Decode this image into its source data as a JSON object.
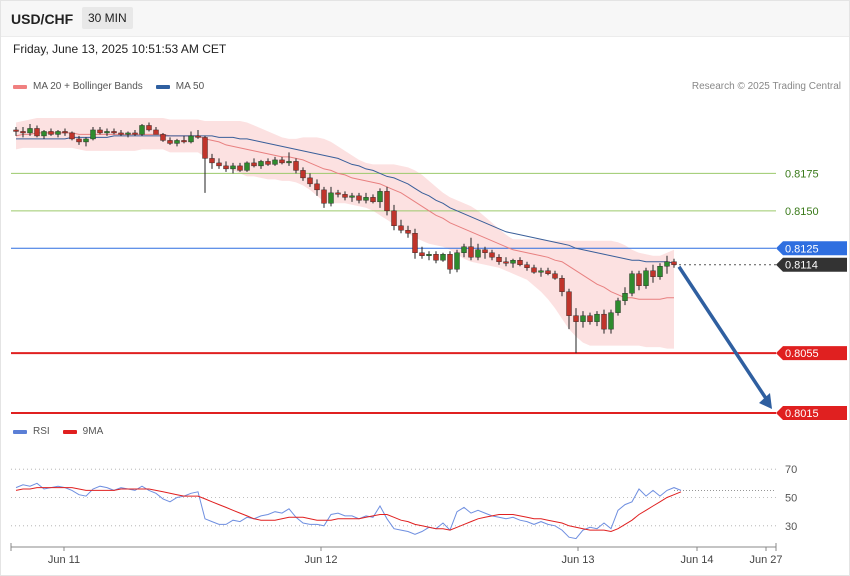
{
  "header": {
    "pair": "USD/CHF",
    "timeframe": "30 MIN"
  },
  "timestamp": "Friday, June 13, 2025 10:51:53 AM CET",
  "legend": [
    {
      "label": "MA 20 + Bollinger Bands",
      "color": "#f08080"
    },
    {
      "label": "MA 50",
      "color": "#2f5fa0"
    }
  ],
  "credit": "Research © 2025 Trading Central",
  "rsi_legend": [
    {
      "label": "RSI",
      "color": "#5b7fd6"
    },
    {
      "label": "9MA",
      "color": "#e02020"
    }
  ],
  "colors": {
    "up": "#2e8b2e",
    "down": "#c0342b",
    "ma20": "#e88080",
    "ma50": "#3a5f9a",
    "band": "#fcdede",
    "target": "#2f5fa0"
  },
  "chart_data": [
    {
      "type": "candlestick",
      "title": "USD/CHF",
      "ylim": [
        0.8005,
        0.823
      ],
      "x_ticks": [
        "Jun 11",
        "Jun 12",
        "Jun 13",
        "Jun 14",
        "Jun 27"
      ],
      "candles": [
        [
          0.8204,
          0.8206,
          0.82,
          0.8203
        ],
        [
          0.8203,
          0.8206,
          0.8199,
          0.8202
        ],
        [
          0.8202,
          0.8208,
          0.82,
          0.8205
        ],
        [
          0.8205,
          0.8207,
          0.8199,
          0.82
        ],
        [
          0.82,
          0.8204,
          0.8198,
          0.8203
        ],
        [
          0.8203,
          0.8205,
          0.82,
          0.8201
        ],
        [
          0.8201,
          0.8204,
          0.8199,
          0.8203
        ],
        [
          0.8203,
          0.8205,
          0.82,
          0.8202
        ],
        [
          0.8202,
          0.8203,
          0.8197,
          0.8198
        ],
        [
          0.8198,
          0.82,
          0.8194,
          0.8196
        ],
        [
          0.8196,
          0.8199,
          0.8193,
          0.8198
        ],
        [
          0.8198,
          0.8206,
          0.8197,
          0.8204
        ],
        [
          0.8204,
          0.8206,
          0.8201,
          0.8202
        ],
        [
          0.8202,
          0.8205,
          0.82,
          0.8203
        ],
        [
          0.8203,
          0.8205,
          0.8201,
          0.8202
        ],
        [
          0.8202,
          0.8204,
          0.82,
          0.8201
        ],
        [
          0.8201,
          0.8203,
          0.8199,
          0.8202
        ],
        [
          0.8202,
          0.8204,
          0.82,
          0.8201
        ],
        [
          0.8201,
          0.8208,
          0.82,
          0.8207
        ],
        [
          0.8207,
          0.8209,
          0.8203,
          0.8204
        ],
        [
          0.8204,
          0.8206,
          0.8201,
          0.8201
        ],
        [
          0.8201,
          0.8202,
          0.8196,
          0.8197
        ],
        [
          0.8197,
          0.8199,
          0.8194,
          0.8195
        ],
        [
          0.8195,
          0.8198,
          0.8193,
          0.8197
        ],
        [
          0.8197,
          0.82,
          0.8195,
          0.8196
        ],
        [
          0.8196,
          0.8203,
          0.8195,
          0.82
        ],
        [
          0.82,
          0.8204,
          0.8198,
          0.8199
        ],
        [
          0.8199,
          0.82,
          0.8162,
          0.8185
        ],
        [
          0.8185,
          0.8188,
          0.8178,
          0.8182
        ],
        [
          0.8182,
          0.8185,
          0.8178,
          0.818
        ],
        [
          0.818,
          0.8183,
          0.8176,
          0.8178
        ],
        [
          0.8178,
          0.8182,
          0.8175,
          0.818
        ],
        [
          0.818,
          0.8182,
          0.8176,
          0.8177
        ],
        [
          0.8177,
          0.8183,
          0.8176,
          0.8182
        ],
        [
          0.8182,
          0.8185,
          0.8179,
          0.818
        ],
        [
          0.818,
          0.8184,
          0.8178,
          0.8183
        ],
        [
          0.8183,
          0.8185,
          0.818,
          0.8181
        ],
        [
          0.8181,
          0.8186,
          0.818,
          0.8184
        ],
        [
          0.8184,
          0.8186,
          0.8181,
          0.8182
        ],
        [
          0.8182,
          0.8189,
          0.818,
          0.8183
        ],
        [
          0.8183,
          0.8185,
          0.8175,
          0.8177
        ],
        [
          0.8177,
          0.8179,
          0.817,
          0.8172
        ],
        [
          0.8172,
          0.8175,
          0.8166,
          0.8168
        ],
        [
          0.8168,
          0.8171,
          0.816,
          0.8164
        ],
        [
          0.8164,
          0.8166,
          0.8152,
          0.8155
        ],
        [
          0.8155,
          0.8166,
          0.8153,
          0.8162
        ],
        [
          0.8162,
          0.8164,
          0.8159,
          0.8161
        ],
        [
          0.8161,
          0.8163,
          0.8157,
          0.8159
        ],
        [
          0.8159,
          0.8162,
          0.8156,
          0.816
        ],
        [
          0.816,
          0.8162,
          0.8155,
          0.8157
        ],
        [
          0.8157,
          0.8162,
          0.8155,
          0.8159
        ],
        [
          0.8159,
          0.8161,
          0.8155,
          0.8156
        ],
        [
          0.8156,
          0.8165,
          0.8152,
          0.8163
        ],
        [
          0.8163,
          0.8166,
          0.8147,
          0.815
        ],
        [
          0.815,
          0.8154,
          0.8137,
          0.814
        ],
        [
          0.814,
          0.8144,
          0.8135,
          0.8137
        ],
        [
          0.8137,
          0.814,
          0.8132,
          0.8135
        ],
        [
          0.8135,
          0.8138,
          0.8118,
          0.8122
        ],
        [
          0.8122,
          0.8126,
          0.8118,
          0.812
        ],
        [
          0.812,
          0.8123,
          0.8117,
          0.8121
        ],
        [
          0.8121,
          0.8123,
          0.8115,
          0.8117
        ],
        [
          0.8117,
          0.8122,
          0.8116,
          0.8121
        ],
        [
          0.8121,
          0.8123,
          0.8108,
          0.8111
        ],
        [
          0.8111,
          0.8124,
          0.8109,
          0.8122
        ],
        [
          0.8122,
          0.8128,
          0.8119,
          0.8126
        ],
        [
          0.8126,
          0.8132,
          0.8117,
          0.8119
        ],
        [
          0.8119,
          0.8128,
          0.8117,
          0.8124
        ],
        [
          0.8124,
          0.8126,
          0.8118,
          0.8122
        ],
        [
          0.8122,
          0.8124,
          0.8117,
          0.8119
        ],
        [
          0.8119,
          0.8121,
          0.8114,
          0.8116
        ],
        [
          0.8116,
          0.8119,
          0.8113,
          0.8115
        ],
        [
          0.8115,
          0.8118,
          0.8112,
          0.8117
        ],
        [
          0.8117,
          0.8119,
          0.8113,
          0.8114
        ],
        [
          0.8114,
          0.8116,
          0.811,
          0.8112
        ],
        [
          0.8112,
          0.8114,
          0.8108,
          0.8109
        ],
        [
          0.8109,
          0.8112,
          0.8106,
          0.811
        ],
        [
          0.811,
          0.8112,
          0.8107,
          0.8108
        ],
        [
          0.8108,
          0.811,
          0.8104,
          0.8105
        ],
        [
          0.8105,
          0.8107,
          0.8093,
          0.8096
        ],
        [
          0.8096,
          0.8098,
          0.8071,
          0.808
        ],
        [
          0.808,
          0.8085,
          0.8055,
          0.8076
        ],
        [
          0.8076,
          0.8083,
          0.8072,
          0.808
        ],
        [
          0.808,
          0.8082,
          0.8074,
          0.8076
        ],
        [
          0.8076,
          0.8083,
          0.8073,
          0.8081
        ],
        [
          0.8081,
          0.8084,
          0.8068,
          0.8071
        ],
        [
          0.8071,
          0.8084,
          0.8068,
          0.8082
        ],
        [
          0.8082,
          0.8092,
          0.808,
          0.809
        ],
        [
          0.809,
          0.8099,
          0.8087,
          0.8095
        ],
        [
          0.8095,
          0.811,
          0.8093,
          0.8108
        ],
        [
          0.8108,
          0.811,
          0.8097,
          0.81
        ],
        [
          0.81,
          0.8112,
          0.8098,
          0.811
        ],
        [
          0.811,
          0.8114,
          0.8102,
          0.8106
        ],
        [
          0.8106,
          0.8115,
          0.8104,
          0.8113
        ],
        [
          0.8113,
          0.812,
          0.8108,
          0.8116
        ],
        [
          0.8116,
          0.8118,
          0.8112,
          0.8114
        ]
      ],
      "ma20": [
        0.82,
        0.8201,
        0.8201,
        0.8202,
        0.8202,
        0.8202,
        0.8202,
        0.8202,
        0.8202,
        0.8201,
        0.8201,
        0.8201,
        0.8201,
        0.8201,
        0.8201,
        0.8201,
        0.8201,
        0.8201,
        0.8201,
        0.8201,
        0.8201,
        0.8201,
        0.82,
        0.82,
        0.82,
        0.82,
        0.82,
        0.8198,
        0.8197,
        0.8196,
        0.8194,
        0.8193,
        0.8192,
        0.8191,
        0.819,
        0.8189,
        0.8188,
        0.8187,
        0.8186,
        0.8186,
        0.8185,
        0.8184,
        0.8182,
        0.818,
        0.8178,
        0.8177,
        0.8175,
        0.8174,
        0.8172,
        0.8171,
        0.817,
        0.8169,
        0.8168,
        0.8166,
        0.8164,
        0.8162,
        0.8159,
        0.8156,
        0.8153,
        0.815,
        0.8147,
        0.8145,
        0.8142,
        0.814,
        0.8138,
        0.8136,
        0.8134,
        0.8132,
        0.813,
        0.8128,
        0.8126,
        0.8124,
        0.8123,
        0.8122,
        0.8121,
        0.812,
        0.8119,
        0.8117,
        0.8116,
        0.8113,
        0.811,
        0.8107,
        0.8104,
        0.8101,
        0.8099,
        0.8096,
        0.8094,
        0.8092,
        0.8092,
        0.8091,
        0.8091,
        0.8091,
        0.8091,
        0.8092,
        0.8092
      ],
      "bb_upper": [
        0.8209,
        0.821,
        0.8211,
        0.8212,
        0.8212,
        0.8212,
        0.8212,
        0.8212,
        0.8212,
        0.8212,
        0.8212,
        0.8212,
        0.8212,
        0.8212,
        0.8212,
        0.8212,
        0.8212,
        0.8212,
        0.8212,
        0.8212,
        0.8212,
        0.8212,
        0.8211,
        0.8211,
        0.8211,
        0.8211,
        0.8211,
        0.821,
        0.821,
        0.821,
        0.821,
        0.821,
        0.821,
        0.8209,
        0.8207,
        0.8205,
        0.8203,
        0.8201,
        0.8199,
        0.8198,
        0.8198,
        0.8199,
        0.8199,
        0.8199,
        0.8198,
        0.8196,
        0.8193,
        0.819,
        0.8187,
        0.8184,
        0.8182,
        0.8181,
        0.8181,
        0.8181,
        0.8181,
        0.818,
        0.8179,
        0.8177,
        0.8174,
        0.817,
        0.8166,
        0.8162,
        0.8159,
        0.8157,
        0.8155,
        0.8153,
        0.815,
        0.8146,
        0.8142,
        0.8138,
        0.8134,
        0.8131,
        0.8131,
        0.8131,
        0.8131,
        0.8131,
        0.813,
        0.813,
        0.813,
        0.813,
        0.813,
        0.813,
        0.813,
        0.813,
        0.813,
        0.813,
        0.8129,
        0.8127,
        0.8124,
        0.8122,
        0.8121,
        0.812,
        0.812,
        0.8122,
        0.8124
      ],
      "bb_lower": [
        0.8191,
        0.8192,
        0.8192,
        0.8192,
        0.8192,
        0.8192,
        0.8192,
        0.8192,
        0.8192,
        0.8191,
        0.819,
        0.819,
        0.819,
        0.819,
        0.819,
        0.819,
        0.819,
        0.819,
        0.8191,
        0.8191,
        0.8191,
        0.8191,
        0.8189,
        0.8189,
        0.8189,
        0.8189,
        0.8189,
        0.8186,
        0.8184,
        0.8182,
        0.8179,
        0.8177,
        0.8175,
        0.8173,
        0.8173,
        0.8172,
        0.8171,
        0.8171,
        0.817,
        0.817,
        0.8169,
        0.8167,
        0.8164,
        0.816,
        0.8156,
        0.8155,
        0.8155,
        0.8155,
        0.8154,
        0.8153,
        0.8152,
        0.815,
        0.8147,
        0.8144,
        0.8141,
        0.8138,
        0.8135,
        0.8132,
        0.813,
        0.8128,
        0.8127,
        0.8126,
        0.8124,
        0.8121,
        0.8118,
        0.8116,
        0.8115,
        0.8114,
        0.8113,
        0.8112,
        0.811,
        0.8108,
        0.8106,
        0.8104,
        0.81,
        0.8096,
        0.8091,
        0.8085,
        0.8078,
        0.8071,
        0.8066,
        0.8062,
        0.806,
        0.806,
        0.806,
        0.806,
        0.806,
        0.806,
        0.806,
        0.806,
        0.8059,
        0.8059,
        0.8059,
        0.8058,
        0.8058
      ],
      "ma50": [
        0.8198,
        0.8198,
        0.8198,
        0.8198,
        0.8198,
        0.8198,
        0.8198,
        0.8198,
        0.8199,
        0.8199,
        0.8199,
        0.8199,
        0.8199,
        0.8199,
        0.82,
        0.82,
        0.82,
        0.82,
        0.82,
        0.82,
        0.82,
        0.82,
        0.82,
        0.82,
        0.82,
        0.82,
        0.82,
        0.82,
        0.82,
        0.8199,
        0.8199,
        0.8199,
        0.8198,
        0.8198,
        0.8197,
        0.8196,
        0.8195,
        0.8194,
        0.8193,
        0.8192,
        0.8191,
        0.819,
        0.8189,
        0.8188,
        0.8187,
        0.8186,
        0.8185,
        0.8183,
        0.8181,
        0.818,
        0.8178,
        0.8177,
        0.8175,
        0.8173,
        0.8172,
        0.817,
        0.8168,
        0.8165,
        0.8162,
        0.816,
        0.8157,
        0.8155,
        0.8152,
        0.815,
        0.8148,
        0.8146,
        0.8144,
        0.8142,
        0.814,
        0.8138,
        0.8136,
        0.8135,
        0.8134,
        0.8133,
        0.8132,
        0.8131,
        0.813,
        0.8129,
        0.8128,
        0.8127,
        0.8125,
        0.8124,
        0.8123,
        0.8122,
        0.8121,
        0.812,
        0.8119,
        0.8118,
        0.8117,
        0.8117,
        0.8116,
        0.8116,
        0.8116,
        0.8116,
        0.8115
      ],
      "levels": [
        {
          "value": 0.8175,
          "label": "0.8175",
          "kind": "resistance"
        },
        {
          "value": 0.815,
          "label": "0.8150",
          "kind": "resistance"
        },
        {
          "value": 0.8125,
          "label": "0.8125",
          "kind": "pivot"
        },
        {
          "value": 0.8114,
          "label": "0.8114",
          "kind": "last"
        },
        {
          "value": 0.8055,
          "label": "0.8055",
          "kind": "support"
        },
        {
          "value": 0.8015,
          "label": "0.8015",
          "kind": "support"
        }
      ],
      "forecast_target": 0.8015
    },
    {
      "type": "line",
      "title": "RSI",
      "ylim": [
        20,
        80
      ],
      "y_ticks": [
        30,
        50,
        70
      ],
      "series": [
        {
          "name": "RSI",
          "values": [
            57,
            59,
            58,
            60,
            56,
            57,
            58,
            57,
            55,
            52,
            51,
            56,
            58,
            57,
            55,
            57,
            56,
            55,
            58,
            55,
            53,
            49,
            47,
            50,
            51,
            53,
            54,
            35,
            33,
            31,
            31,
            34,
            33,
            36,
            35,
            37,
            38,
            40,
            39,
            42,
            36,
            32,
            31,
            31,
            30,
            38,
            39,
            37,
            37,
            35,
            37,
            36,
            44,
            35,
            28,
            27,
            26,
            24,
            26,
            29,
            28,
            32,
            27,
            40,
            43,
            39,
            41,
            39,
            37,
            36,
            35,
            36,
            34,
            33,
            31,
            33,
            31,
            30,
            27,
            22,
            21,
            27,
            29,
            28,
            32,
            28,
            41,
            45,
            47,
            56,
            51,
            55,
            51,
            55,
            57,
            55
          ]
        },
        {
          "name": "9MA",
          "values": [
            55,
            56,
            56,
            57,
            57,
            57,
            57,
            57,
            57,
            56,
            55,
            55,
            55,
            55,
            55,
            56,
            56,
            56,
            56,
            56,
            55,
            54,
            53,
            52,
            51,
            51,
            51,
            49,
            47,
            45,
            43,
            41,
            39,
            37,
            35,
            34,
            34,
            34,
            35,
            36,
            36,
            36,
            35,
            34,
            34,
            34,
            35,
            35,
            35,
            35,
            36,
            37,
            38,
            38,
            36,
            34,
            33,
            31,
            30,
            29,
            28,
            28,
            27,
            29,
            31,
            33,
            35,
            36,
            37,
            38,
            38,
            38,
            37,
            36,
            35,
            35,
            34,
            33,
            32,
            30,
            29,
            28,
            27,
            27,
            27,
            26,
            28,
            31,
            34,
            38,
            41,
            44,
            47,
            50,
            52,
            54
          ]
        }
      ]
    }
  ]
}
